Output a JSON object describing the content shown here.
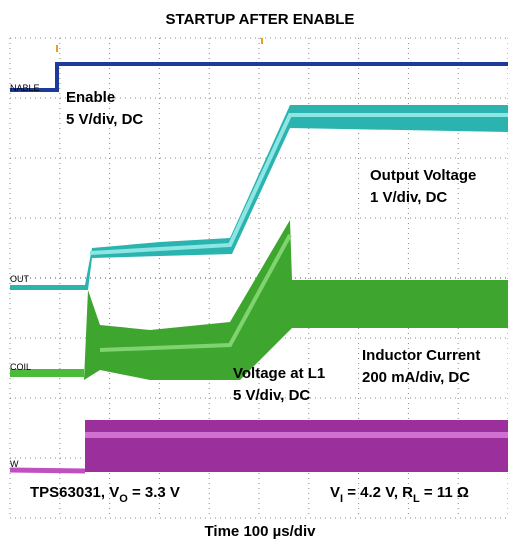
{
  "title": "STARTUP AFTER ENABLE",
  "footer": "Time 100 µs/div",
  "channel_tags": [
    "NABLE",
    "OUT",
    "COIL",
    "W"
  ],
  "annotations": {
    "enable": [
      "Enable",
      "5 V/div, DC"
    ],
    "output_voltage": [
      "Output Voltage",
      "1 V/div, DC"
    ],
    "inductor_current": [
      "Inductor Current",
      "200 mA/div, DC"
    ],
    "voltage_l1": [
      "Voltage at L1",
      "5 V/div, DC"
    ],
    "device": {
      "text": "TPS63031, V",
      "sub": "O",
      "after": " = 3.3 V"
    },
    "conditions": {
      "text": "V",
      "sub": "I",
      "middle": " = 4.2 V, R",
      "sub2": "L",
      "after": " = 11 Ω"
    }
  }
}
